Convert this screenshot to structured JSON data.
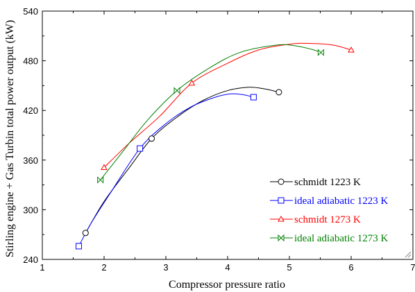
{
  "chart_data": {
    "type": "line",
    "title": "",
    "xlabel": "Compressor pressure ratio",
    "ylabel": "Stirling engine + Gas Turbin total power output (kW)",
    "xlim": [
      1,
      7
    ],
    "ylim": [
      240,
      540
    ],
    "x_ticks": [
      "1",
      "2",
      "3",
      "4",
      "5",
      "6",
      "7"
    ],
    "y_ticks": [
      "240",
      "300",
      "360",
      "420",
      "480",
      "540"
    ],
    "grid": false,
    "legend_position": "bottom-right",
    "series": [
      {
        "name": "schmidt 1223 K",
        "color": "#000000",
        "marker": "circle",
        "markers": [
          [
            1.7,
            272
          ],
          [
            2.77,
            386
          ],
          [
            4.83,
            442
          ]
        ],
        "curve": [
          [
            1.7,
            272
          ],
          [
            2.0,
            310
          ],
          [
            2.4,
            350
          ],
          [
            2.77,
            386
          ],
          [
            3.2,
            413
          ],
          [
            3.6,
            432
          ],
          [
            4.0,
            444
          ],
          [
            4.35,
            448
          ],
          [
            4.6,
            446
          ],
          [
            4.83,
            442
          ]
        ]
      },
      {
        "name": "ideal adiabatic 1223 K",
        "color": "#0000ff",
        "marker": "square",
        "markers": [
          [
            1.59,
            256
          ],
          [
            2.58,
            374
          ],
          [
            4.42,
            436
          ]
        ],
        "curve": [
          [
            1.59,
            256
          ],
          [
            1.8,
            285
          ],
          [
            2.1,
            320
          ],
          [
            2.58,
            374
          ],
          [
            3.0,
            404
          ],
          [
            3.4,
            424
          ],
          [
            3.8,
            436
          ],
          [
            4.05,
            440
          ],
          [
            4.25,
            439
          ],
          [
            4.42,
            436
          ]
        ]
      },
      {
        "name": "schmidt 1273 K",
        "color": "#ff0000",
        "marker": "triangle",
        "markers": [
          [
            2.0,
            351
          ],
          [
            3.42,
            453
          ],
          [
            6.0,
            493
          ]
        ],
        "curve": [
          [
            2.0,
            351
          ],
          [
            2.4,
            380
          ],
          [
            2.9,
            413
          ],
          [
            3.42,
            453
          ],
          [
            4.0,
            477
          ],
          [
            4.5,
            493
          ],
          [
            5.0,
            500
          ],
          [
            5.3,
            501
          ],
          [
            5.7,
            499
          ],
          [
            6.0,
            493
          ]
        ]
      },
      {
        "name": "ideal adiabatic 1273 K",
        "color": "#008000",
        "marker": "bowtie",
        "markers": [
          [
            1.94,
            336
          ],
          [
            3.18,
            444
          ],
          [
            5.51,
            490
          ]
        ],
        "curve": [
          [
            1.94,
            336
          ],
          [
            2.3,
            370
          ],
          [
            2.7,
            408
          ],
          [
            3.18,
            444
          ],
          [
            3.7,
            471
          ],
          [
            4.2,
            490
          ],
          [
            4.8,
            499
          ],
          [
            5.1,
            498
          ],
          [
            5.35,
            494
          ],
          [
            5.51,
            490
          ]
        ]
      }
    ]
  }
}
